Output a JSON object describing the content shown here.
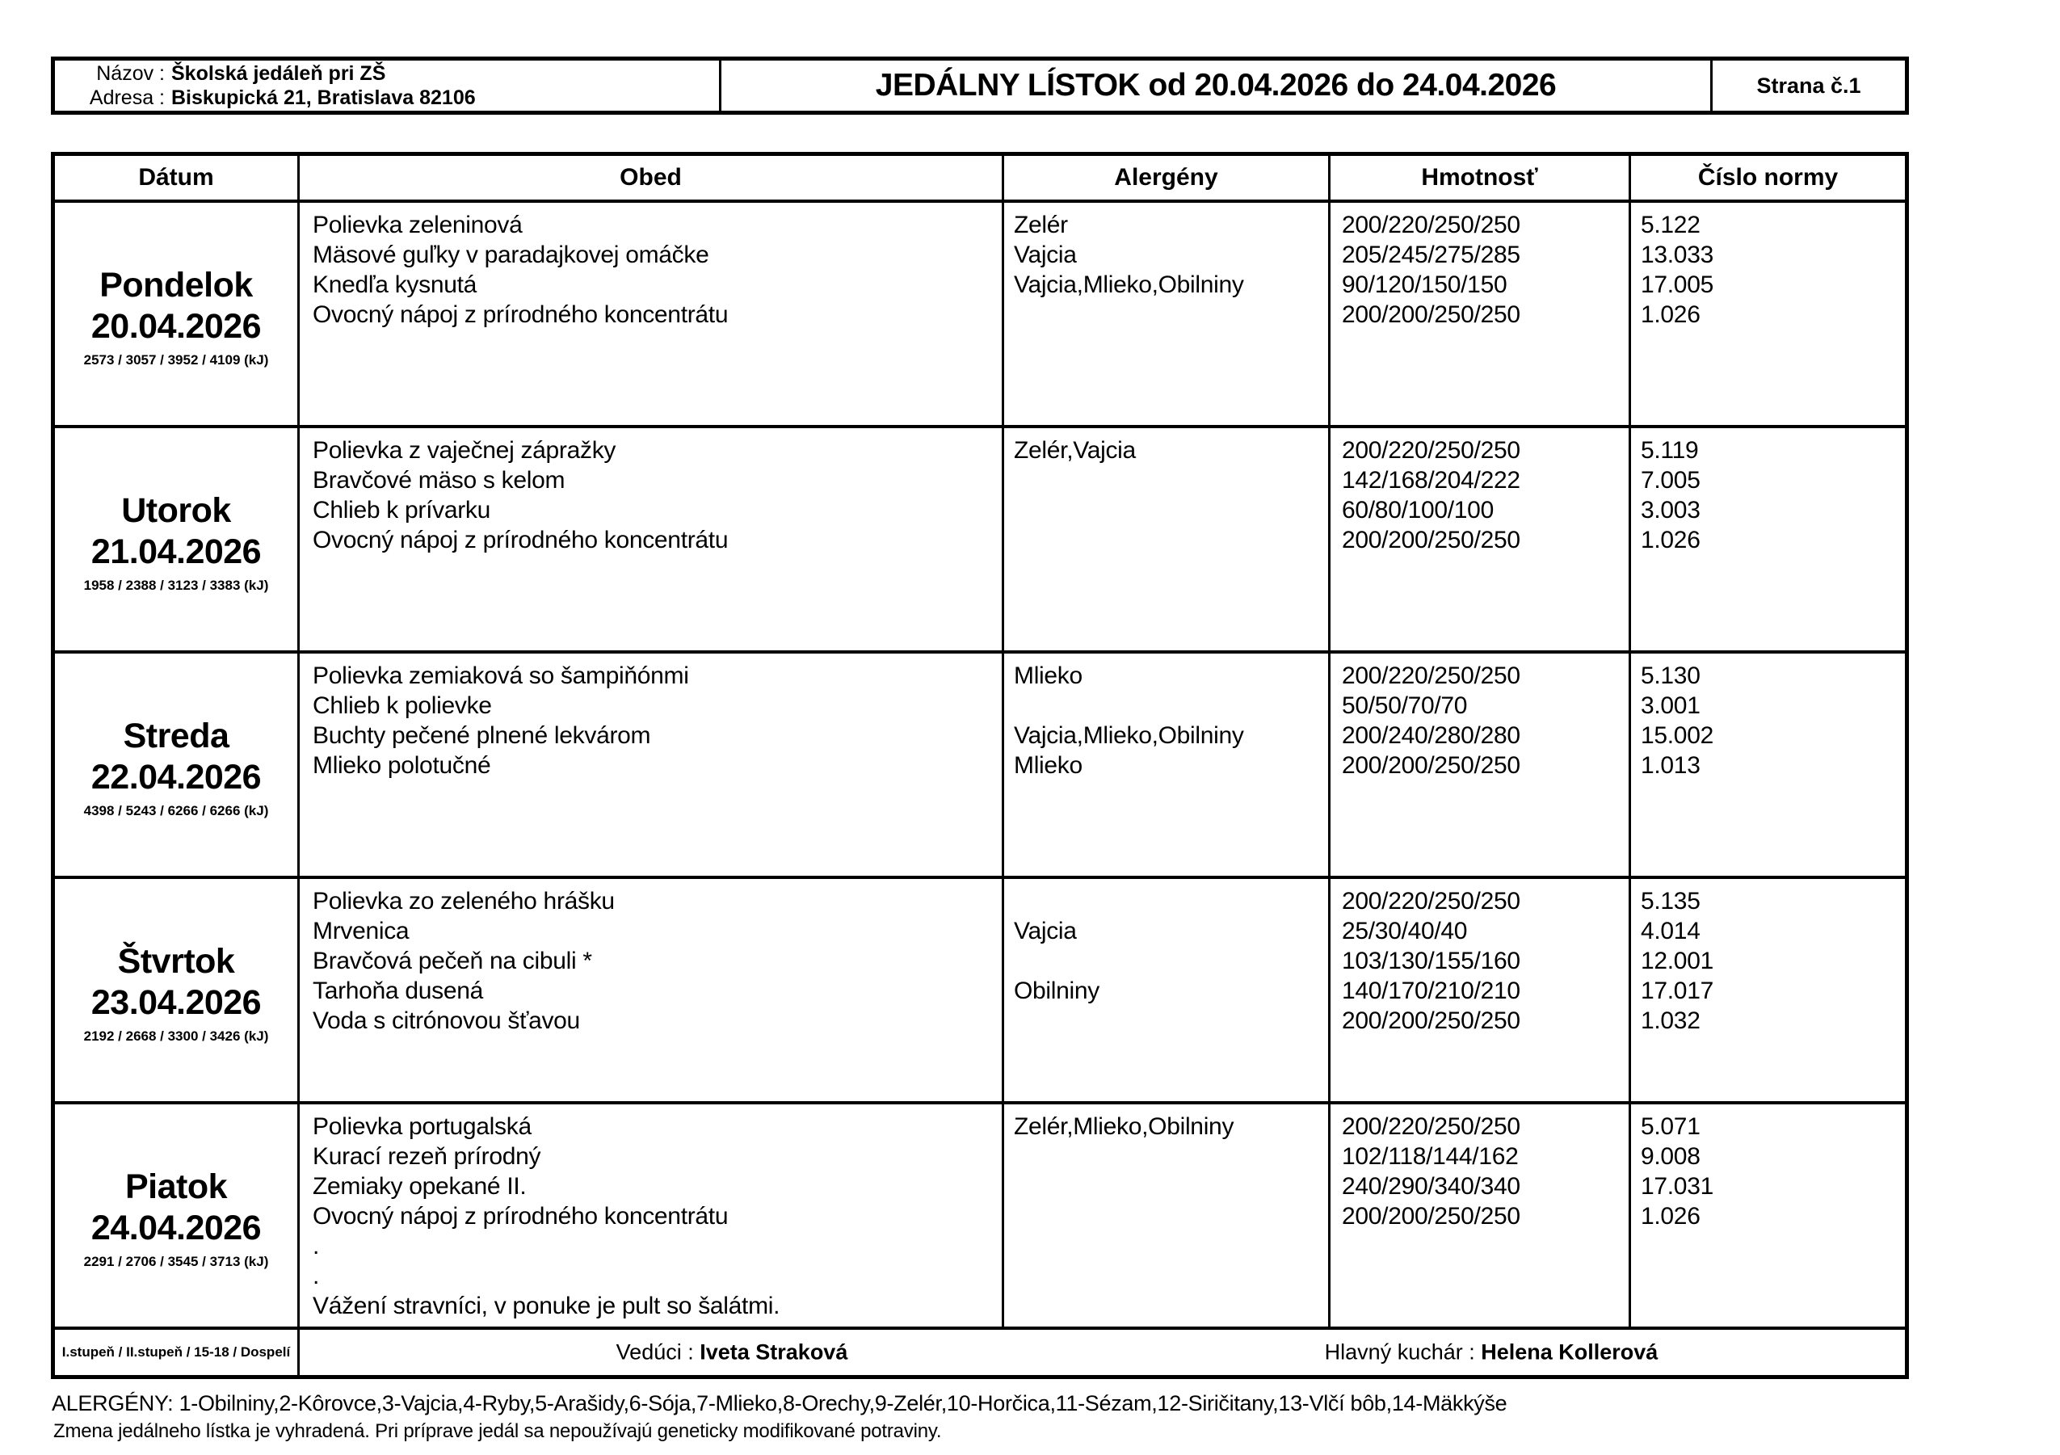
{
  "header": {
    "name_label": "Názov :",
    "name_value": "Školská jedáleň pri ZŠ",
    "address_label": "Adresa :",
    "address_value": "Biskupická 21, Bratislava 82106",
    "title": "JEDÁLNY LÍSTOK od 20.04.2026 do 24.04.2026",
    "page_number": "Strana č.1"
  },
  "table": {
    "columns": [
      "Dátum",
      "Obed",
      "Alergény",
      "Hmotnosť",
      "Číslo normy"
    ],
    "days": [
      {
        "day": "Pondelok",
        "date": "20.04.2026",
        "energy": "2573 / 3057 / 3952 / 4109 (kJ)",
        "lines": [
          {
            "obed": "Polievka zeleninová",
            "alergeny": "Zelér",
            "hmotnost": "200/220/250/250",
            "cislo": "5.122"
          },
          {
            "obed": "Mäsové guľky v paradajkovej omáčke",
            "alergeny": "Vajcia",
            "hmotnost": "205/245/275/285",
            "cislo": "13.033"
          },
          {
            "obed": "Knedľa kysnutá",
            "alergeny": "Vajcia,Mlieko,Obilniny",
            "hmotnost": "90/120/150/150",
            "cislo": "17.005"
          },
          {
            "obed": "Ovocný nápoj z prírodného koncentrátu",
            "alergeny": "",
            "hmotnost": "200/200/250/250",
            "cislo": "1.026"
          }
        ]
      },
      {
        "day": "Utorok",
        "date": "21.04.2026",
        "energy": "1958 / 2388 / 3123 / 3383 (kJ)",
        "lines": [
          {
            "obed": "Polievka z vaječnej zápražky",
            "alergeny": "Zelér,Vajcia",
            "hmotnost": "200/220/250/250",
            "cislo": "5.119"
          },
          {
            "obed": "Bravčové mäso s kelom",
            "alergeny": "",
            "hmotnost": "142/168/204/222",
            "cislo": "7.005"
          },
          {
            "obed": "Chlieb k prívarku",
            "alergeny": "",
            "hmotnost": "60/80/100/100",
            "cislo": "3.003"
          },
          {
            "obed": "Ovocný nápoj z prírodného koncentrátu",
            "alergeny": "",
            "hmotnost": "200/200/250/250",
            "cislo": "1.026"
          }
        ]
      },
      {
        "day": "Streda",
        "date": "22.04.2026",
        "energy": "4398 / 5243 / 6266 / 6266 (kJ)",
        "lines": [
          {
            "obed": "Polievka zemiaková so šampiňónmi",
            "alergeny": "Mlieko",
            "hmotnost": "200/220/250/250",
            "cislo": "5.130"
          },
          {
            "obed": "Chlieb k polievke",
            "alergeny": "",
            "hmotnost": "50/50/70/70",
            "cislo": "3.001"
          },
          {
            "obed": "Buchty pečené plnené lekvárom",
            "alergeny": "Vajcia,Mlieko,Obilniny",
            "hmotnost": "200/240/280/280",
            "cislo": "15.002"
          },
          {
            "obed": "Mlieko polotučné",
            "alergeny": "Mlieko",
            "hmotnost": "200/200/250/250",
            "cislo": "1.013"
          }
        ]
      },
      {
        "day": "Štvrtok",
        "date": "23.04.2026",
        "energy": "2192 / 2668 / 3300 / 3426 (kJ)",
        "lines": [
          {
            "obed": "Polievka zo zeleného hrášku",
            "alergeny": "",
            "hmotnost": "200/220/250/250",
            "cislo": "5.135"
          },
          {
            "obed": "Mrvenica",
            "alergeny": "Vajcia",
            "hmotnost": "25/30/40/40",
            "cislo": "4.014"
          },
          {
            "obed": "Bravčová pečeň na cibuli *",
            "alergeny": "",
            "hmotnost": "103/130/155/160",
            "cislo": "12.001"
          },
          {
            "obed": "Tarhoňa dusená",
            "alergeny": "Obilniny",
            "hmotnost": "140/170/210/210",
            "cislo": "17.017"
          },
          {
            "obed": "Voda s citrónovou šťavou",
            "alergeny": "",
            "hmotnost": "200/200/250/250",
            "cislo": "1.032"
          }
        ]
      },
      {
        "day": "Piatok",
        "date": "24.04.2026",
        "energy": "2291 / 2706 / 3545 / 3713 (kJ)",
        "lines": [
          {
            "obed": "Polievka portugalská",
            "alergeny": "Zelér,Mlieko,Obilniny",
            "hmotnost": "200/220/250/250",
            "cislo": "5.071"
          },
          {
            "obed": "Kurací rezeň prírodný",
            "alergeny": "",
            "hmotnost": "102/118/144/162",
            "cislo": "9.008"
          },
          {
            "obed": "Zemiaky opekané II.",
            "alergeny": "",
            "hmotnost": "240/290/340/340",
            "cislo": "17.031"
          },
          {
            "obed": "Ovocný nápoj z prírodného koncentrátu",
            "alergeny": "",
            "hmotnost": "200/200/250/250",
            "cislo": "1.026"
          },
          {
            "obed": ".",
            "alergeny": "",
            "hmotnost": "",
            "cislo": ""
          },
          {
            "obed": ".",
            "alergeny": "",
            "hmotnost": "",
            "cislo": ""
          },
          {
            "obed": "Vážení stravníci, v ponuke je pult so šalátmi.",
            "alergeny": "",
            "hmotnost": "",
            "cislo": ""
          }
        ]
      }
    ],
    "footer": {
      "groups": "I.stupeň / II.stupeň / 15-18 / Dospelí",
      "manager_label": "Vedúci : ",
      "manager_name": "Iveta Straková",
      "chef_label": "Hlavný kuchár : ",
      "chef_name": "Helena Kollerová"
    }
  },
  "notes": {
    "allergens": "ALERGÉNY: 1-Obilniny,2-Kôrovce,3-Vajcia,4-Ryby,5-Arašidy,6-Sója,7-Mlieko,8-Orechy,9-Zelér,10-Horčica,11-Sézam,12-Siričitany,13-Vlčí bôb,14-Mäkkýše",
    "disclaimer": "Zmena jedálneho lístka je vyhradená. Pri príprave jedál sa nepoužívajú geneticky modifikované potraviny."
  }
}
